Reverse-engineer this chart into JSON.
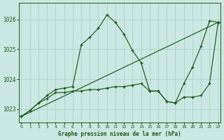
{
  "title": "Graphe pression niveau de la mer (hPa)",
  "bg": "#cce8e2",
  "grid_color": "#aacccc",
  "lc": "#1a5c1a",
  "xlim": [
    0,
    23
  ],
  "ylim": [
    1022.55,
    1026.55
  ],
  "yticks": [
    1023,
    1024,
    1025,
    1026
  ],
  "xticks": [
    0,
    1,
    2,
    3,
    4,
    5,
    6,
    7,
    8,
    9,
    10,
    11,
    12,
    13,
    14,
    15,
    16,
    17,
    18,
    19,
    20,
    21,
    22,
    23
  ],
  "line1_x": [
    0,
    1,
    2,
    3,
    4,
    5,
    6,
    7,
    8,
    9,
    10,
    11,
    12,
    13,
    14,
    15,
    16,
    17,
    18,
    19,
    20,
    21,
    22,
    23
  ],
  "line1_y": [
    1022.75,
    1022.95,
    1023.2,
    1023.45,
    1023.65,
    1023.7,
    1023.75,
    1025.15,
    1025.4,
    1025.7,
    1026.15,
    1025.9,
    1025.5,
    1024.95,
    1024.55,
    1023.6,
    1023.6,
    1023.25,
    1023.2,
    1023.85,
    1024.4,
    1025.1,
    1025.95,
    1025.9
  ],
  "line2_x": [
    0,
    23
  ],
  "line2_y": [
    1022.75,
    1025.9
  ],
  "line3_x": [
    0,
    1,
    2,
    3,
    4,
    5,
    6,
    7,
    8,
    9,
    10,
    11,
    12,
    13,
    14,
    15,
    16,
    17,
    18,
    19,
    20,
    21,
    22,
    23
  ],
  "line3_y": [
    1022.75,
    1022.95,
    1023.2,
    1023.35,
    1023.55,
    1023.55,
    1023.6,
    1023.6,
    1023.65,
    1023.65,
    1023.7,
    1023.75,
    1023.75,
    1023.8,
    1023.85,
    1023.6,
    1023.6,
    1023.25,
    1023.2,
    1023.4,
    1023.4,
    1023.45,
    1023.85,
    1025.9
  ]
}
